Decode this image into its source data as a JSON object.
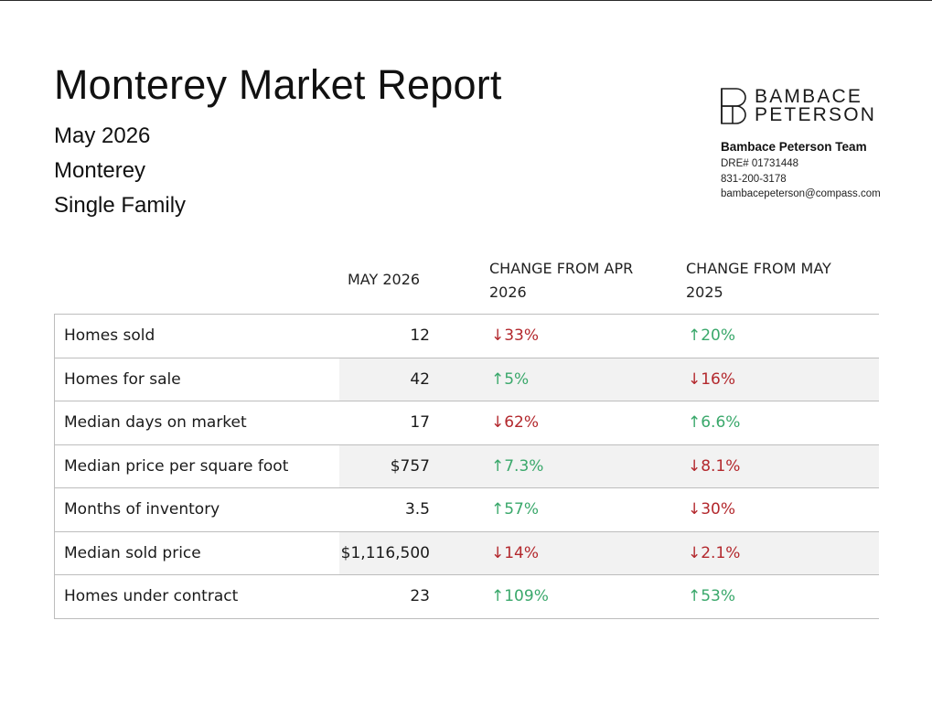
{
  "report": {
    "title": "Monterey Market Report",
    "period": "May 2026",
    "area": "Monterey",
    "property_type": "Single Family"
  },
  "brand": {
    "logo_line1": "BAMBACE",
    "logo_line2": "PETERSON",
    "team": "Bambace Peterson Team",
    "dre": "DRE# 01731448",
    "phone": "831-200-3178",
    "email": "bambacepeterson@compass.com"
  },
  "columns": {
    "current": "MAY 2026",
    "change_prev_month": "CHANGE FROM APR 2026",
    "change_prev_year": "CHANGE FROM MAY 2025"
  },
  "colors": {
    "down": "#b3282d",
    "up": "#3aa86b",
    "row_shade": "#f2f2f2"
  },
  "rows": [
    {
      "label": "Homes sold",
      "value": "12",
      "apr": {
        "text": "↓33%",
        "dir": "down"
      },
      "may": {
        "text": "↑20%",
        "dir": "up"
      }
    },
    {
      "label": "Homes for sale",
      "value": "42",
      "apr": {
        "text": "↑5%",
        "dir": "up"
      },
      "may": {
        "text": "↓16%",
        "dir": "down"
      }
    },
    {
      "label": "Median days on market",
      "value": "17",
      "apr": {
        "text": "↓62%",
        "dir": "down"
      },
      "may": {
        "text": "↑6.6%",
        "dir": "up"
      }
    },
    {
      "label": "Median price per square foot",
      "value": "$757",
      "apr": {
        "text": "↑7.3%",
        "dir": "up"
      },
      "may": {
        "text": "↓8.1%",
        "dir": "down"
      }
    },
    {
      "label": "Months of inventory",
      "value": "3.5",
      "apr": {
        "text": "↑57%",
        "dir": "up"
      },
      "may": {
        "text": "↓30%",
        "dir": "down"
      }
    },
    {
      "label": "Median sold price",
      "value": "$1,116,500",
      "apr": {
        "text": "↓14%",
        "dir": "down"
      },
      "may": {
        "text": "↓2.1%",
        "dir": "down"
      }
    },
    {
      "label": "Homes under contract",
      "value": "23",
      "apr": {
        "text": "↑109%",
        "dir": "up"
      },
      "may": {
        "text": "↑53%",
        "dir": "up"
      }
    }
  ]
}
